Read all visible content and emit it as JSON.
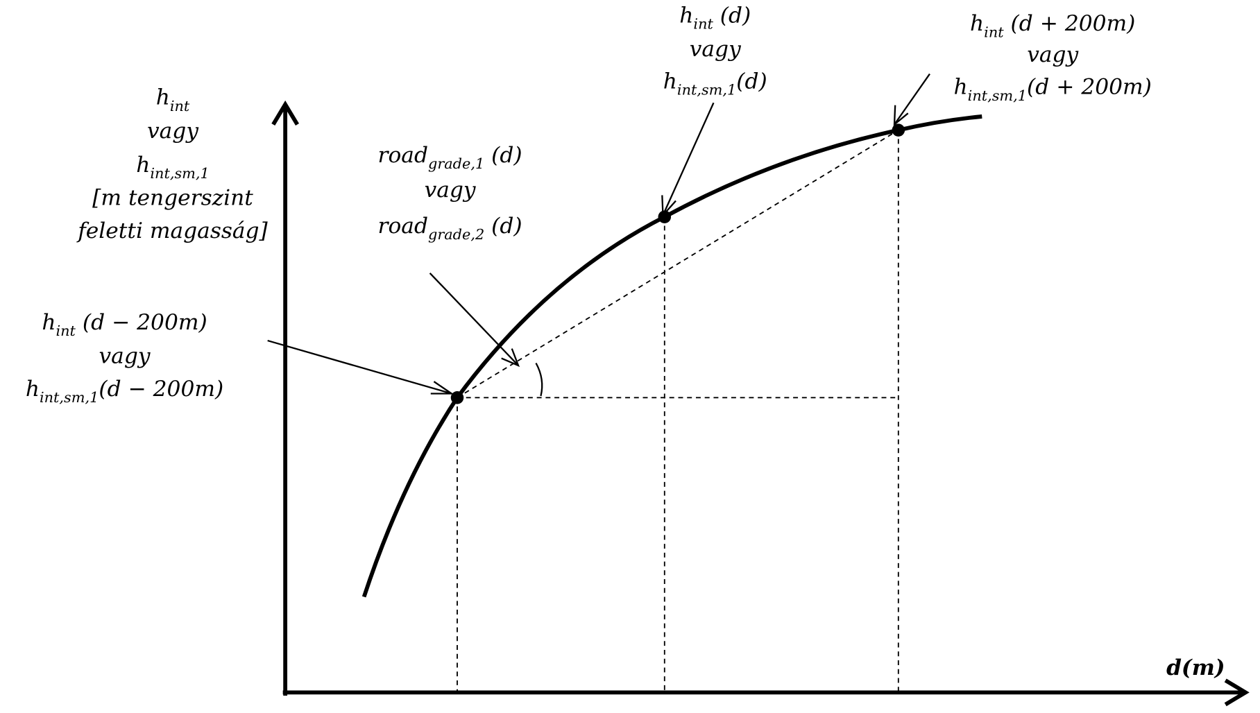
{
  "labels": [
    {
      "lines": [
        {
          "base": "h",
          "sub": "int"
        },
        {
          "base": "vagy"
        },
        {
          "base": "h",
          "sub": "int,sm,1"
        },
        {
          "base": "[m tengerszint"
        },
        {
          "base": "feletti magasság]"
        }
      ]
    },
    {
      "lines": [
        {
          "base": "road",
          "sub": "grade,1",
          "rest": " (d)"
        },
        {
          "base": "vagy"
        },
        {
          "base": "road",
          "sub": "grade,2",
          "rest": " (d)"
        }
      ]
    },
    {
      "lines": [
        {
          "base": "h",
          "sub": "int",
          "rest": " (d − 200m)"
        },
        {
          "base": "vagy"
        },
        {
          "base": "h",
          "sub": "int,sm,1",
          "rest": "(d − 200m)"
        }
      ]
    },
    {
      "lines": [
        {
          "base": "h",
          "sub": "int",
          "rest": " (d)"
        },
        {
          "base": "vagy"
        },
        {
          "base": "h",
          "sub": "int,sm,1",
          "rest": "(d)"
        }
      ]
    },
    {
      "lines": [
        {
          "base": "h",
          "sub": "int",
          "rest": " (d + 200m)"
        },
        {
          "base": "vagy"
        },
        {
          "base": "h",
          "sub": "int,sm,1",
          "rest": "(d + 200m)"
        }
      ]
    }
  ],
  "x_axis_label": "d(m)"
}
